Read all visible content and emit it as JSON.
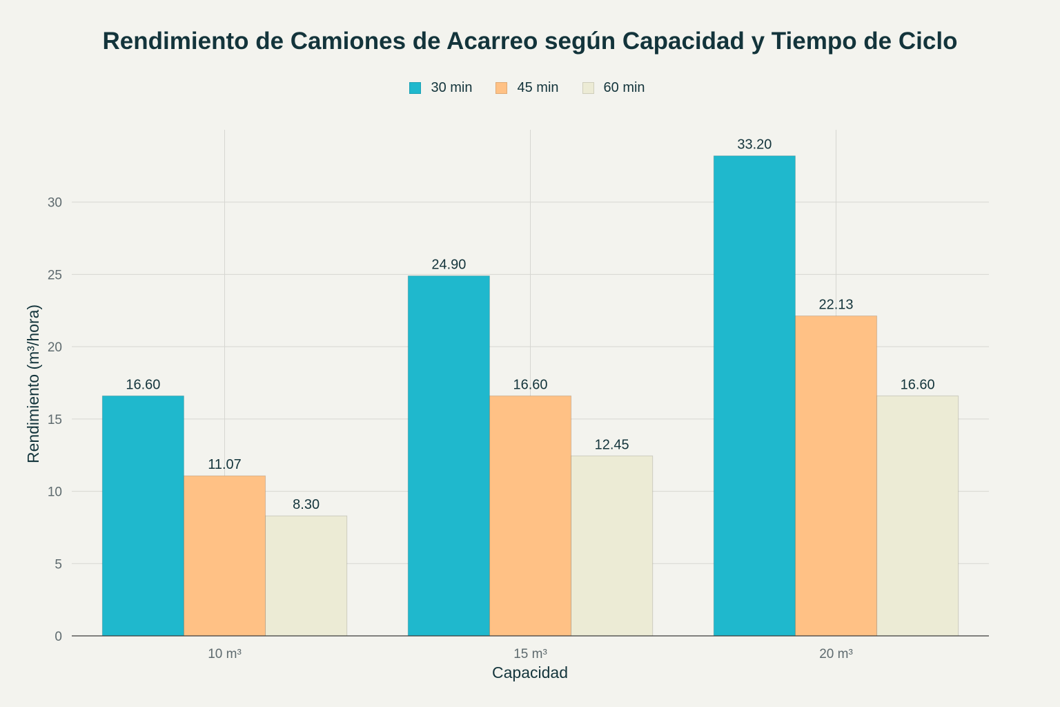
{
  "chart_data": {
    "type": "bar",
    "title": "Rendimiento de Camiones de Acarreo según Capacidad y Tiempo de Ciclo",
    "xlabel": "Capacidad",
    "ylabel": "Rendimiento (m³/hora)",
    "categories": [
      "10 m³",
      "15 m³",
      "20 m³"
    ],
    "series": [
      {
        "name": "30 min",
        "values": [
          16.6,
          24.9,
          33.2
        ],
        "labels": [
          "16.60",
          "24.90",
          "33.20"
        ],
        "color": "#1FB8CD"
      },
      {
        "name": "45 min",
        "values": [
          11.07,
          16.6,
          22.13
        ],
        "labels": [
          "11.07",
          "16.60",
          "22.13"
        ],
        "color": "#FFC185"
      },
      {
        "name": "60 min",
        "values": [
          8.3,
          12.45,
          16.6
        ],
        "labels": [
          "8.30",
          "12.45",
          "16.60"
        ],
        "color": "#ECEBD5"
      }
    ],
    "ylim": [
      0,
      35
    ],
    "yticks": [
      0,
      5,
      10,
      15,
      20,
      25,
      30
    ],
    "grid": true,
    "legend_position": "top-center"
  }
}
